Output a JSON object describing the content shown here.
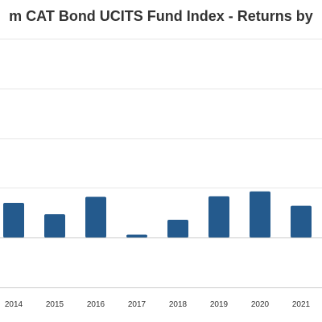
{
  "chart_data": {
    "type": "bar",
    "title": "m CAT Bond UCITS Fund Index - Returns by",
    "xlabel": "",
    "ylabel": "",
    "categories": [
      "2014",
      "2015",
      "2016",
      "2017",
      "2018",
      "2019",
      "2020",
      "2021"
    ],
    "values": [
      7.0,
      4.7,
      8.2,
      0.6,
      3.6,
      8.3,
      9.3,
      6.4
    ],
    "ylim": [
      -10,
      40
    ],
    "yticks": [
      -10,
      0,
      10,
      20,
      30,
      40
    ],
    "grid": true,
    "legend": "none",
    "bar_color": "#245a8d",
    "grid_color": "#e6e6e6",
    "axis_color": "#cccccc"
  }
}
